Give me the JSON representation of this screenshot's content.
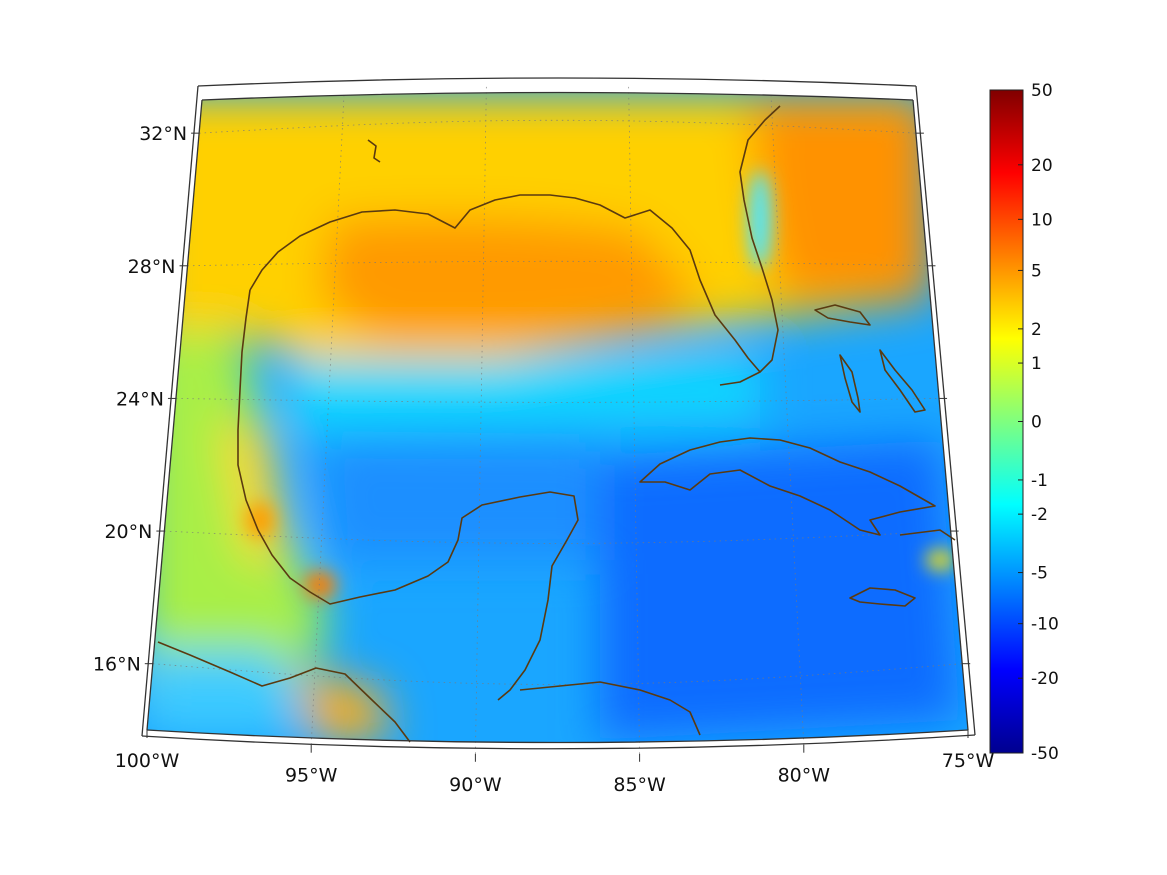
{
  "map": {
    "projection": "lambert-conformal-conic",
    "lon_range": [
      -100,
      -75
    ],
    "lat_range": [
      14,
      33
    ],
    "coastline_color": "#5a3a10",
    "graticule": "dotted",
    "x_ticks": [
      {
        "lon": -100,
        "label": "100°W"
      },
      {
        "lon": -95,
        "label": "95°W"
      },
      {
        "lon": -90,
        "label": "90°W"
      },
      {
        "lon": -85,
        "label": "85°W"
      },
      {
        "lon": -80,
        "label": "80°W"
      },
      {
        "lon": -75,
        "label": "75°W"
      }
    ],
    "y_ticks": [
      {
        "lat": 32,
        "label": "32°N"
      },
      {
        "lat": 28,
        "label": "28°N"
      },
      {
        "lat": 24,
        "label": "24°N"
      },
      {
        "lat": 20,
        "label": "20°N"
      },
      {
        "lat": 16,
        "label": "16°N"
      }
    ]
  },
  "colorbar": {
    "colormap": "jet",
    "scale": "symmetric-log",
    "range": [
      -50,
      50
    ],
    "ticks": [
      "50",
      "20",
      "10",
      "5",
      "2",
      "1",
      "0",
      "-1",
      "-2",
      "-5",
      "-10",
      "-20",
      "-50"
    ]
  },
  "field_summary": {
    "north_gulf": "orange (about 3 to 5)",
    "atlantic_off_florida": "orange (about 5)",
    "central_gulf": "cyan to light blue (about -2 to -3)",
    "caribbean": "blue (about -5 to -10)",
    "mexico_land": "yellow-green (about 0 to 1)"
  }
}
